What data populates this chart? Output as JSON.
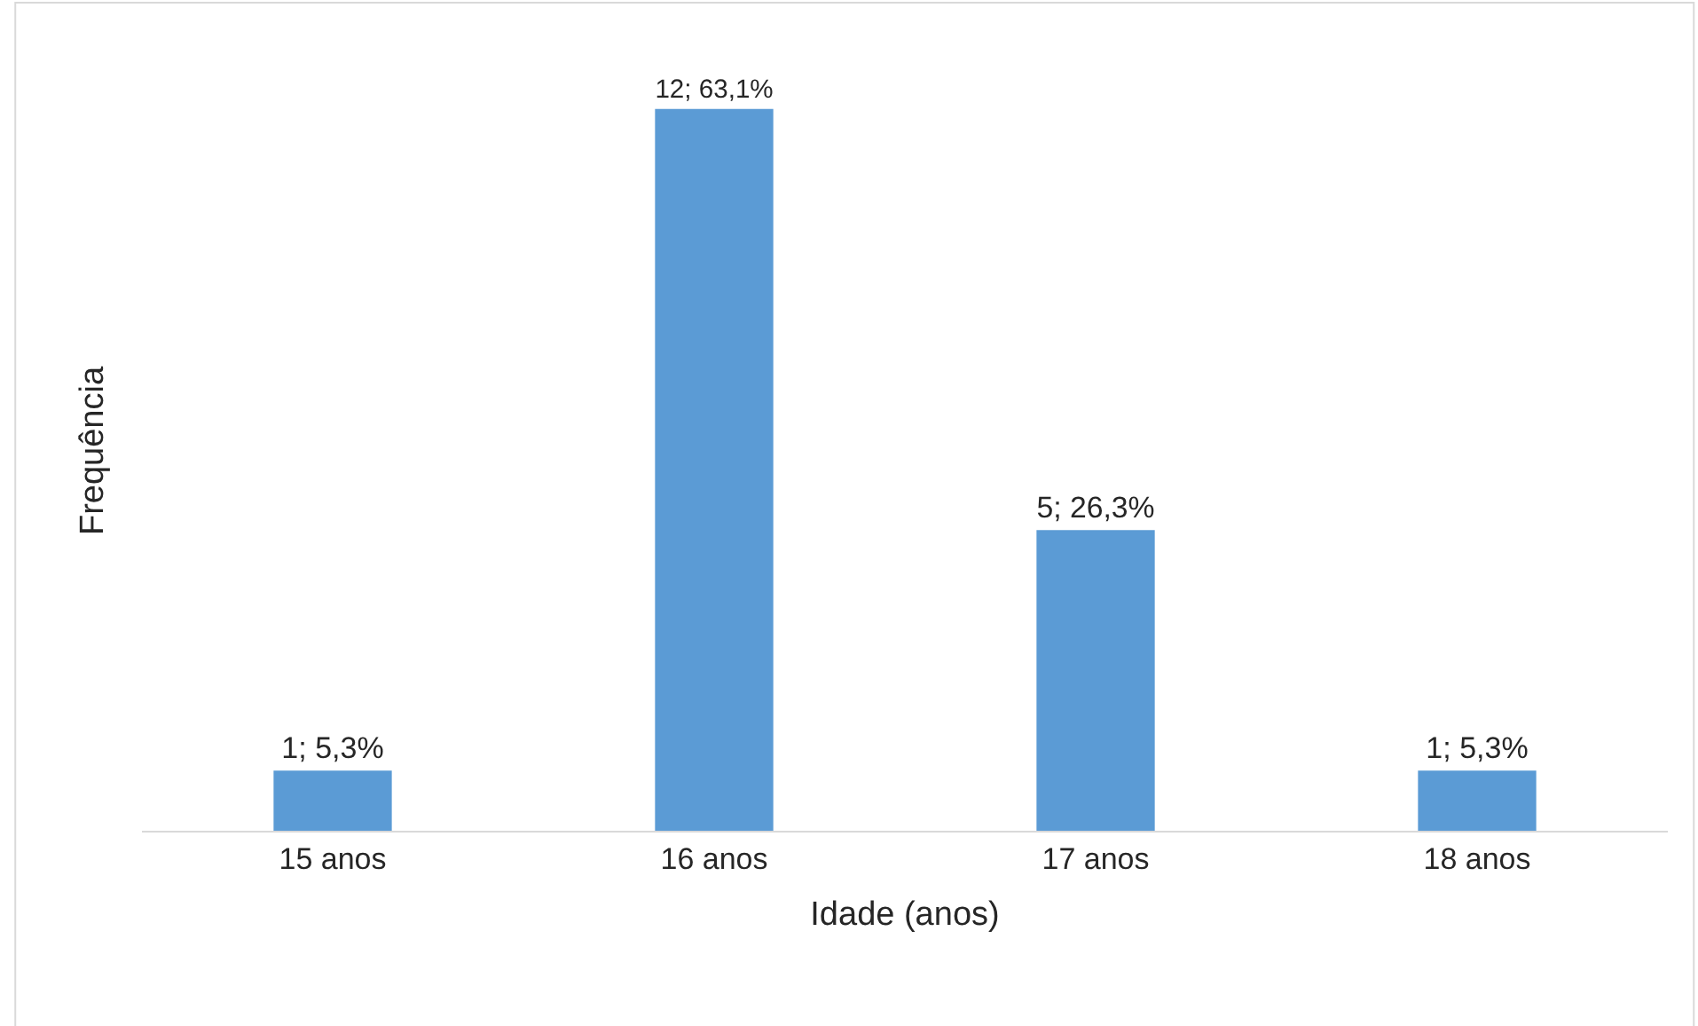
{
  "chart_data": {
    "type": "bar",
    "xlabel": "Idade (anos)",
    "ylabel": "Frequência",
    "categories": [
      "15 anos",
      "16 anos",
      "17 anos",
      "18 anos"
    ],
    "values": [
      1,
      12,
      5,
      1
    ],
    "value_labels": [
      "1; 5,3%",
      "12; 63,1%",
      "5; 26,3%",
      "1; 5,3%"
    ],
    "color": "#5b9bd5",
    "legend": false
  }
}
